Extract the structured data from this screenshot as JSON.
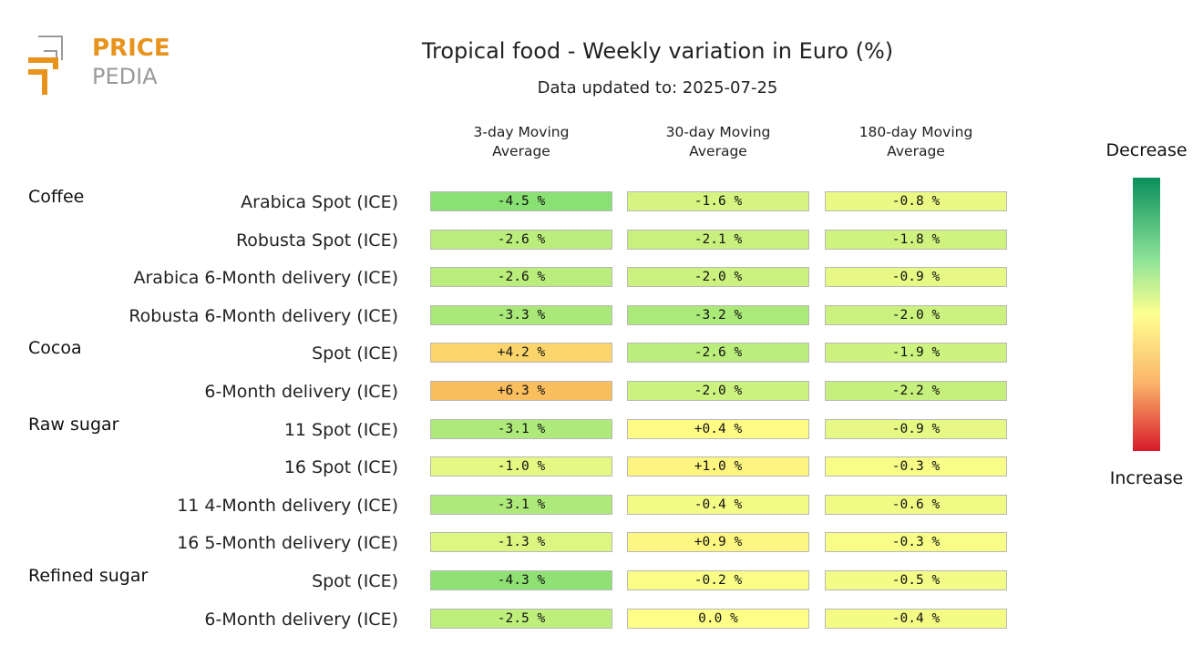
{
  "logo": {
    "line1": "PRICE",
    "line2": "PEDIA",
    "orange": "#e8931c",
    "grey": "#9a9a9a"
  },
  "title": "Tropical food - Weekly variation in Euro (%)",
  "subtitle": "Data updated to: 2025-07-25",
  "columns": [
    "3-day Moving\nAverage",
    "30-day Moving\nAverage",
    "180-day Moving\nAverage"
  ],
  "legend": {
    "top": "Decrease",
    "bottom": "Increase"
  },
  "chart_data": {
    "type": "heatmap",
    "title": "Tropical food - Weekly variation in Euro (%)",
    "subtitle": "Data updated to: 2025-07-25",
    "columns": [
      "3-day Moving Average",
      "30-day Moving Average",
      "180-day Moving Average"
    ],
    "groups": [
      {
        "name": "Coffee",
        "rows": [
          {
            "label": "Arabica Spot (ICE)",
            "values": [
              "-4.5 %",
              "-1.6 %",
              "-0.8 %"
            ]
          },
          {
            "label": "Robusta Spot (ICE)",
            "values": [
              "-2.6 %",
              "-2.1 %",
              "-1.8 %"
            ]
          },
          {
            "label": "Arabica 6-Month delivery (ICE)",
            "values": [
              "-2.6 %",
              "-2.0 %",
              "-0.9 %"
            ]
          },
          {
            "label": "Robusta 6-Month delivery (ICE)",
            "values": [
              "-3.3 %",
              "-3.2 %",
              "-2.0 %"
            ]
          }
        ]
      },
      {
        "name": "Cocoa",
        "rows": [
          {
            "label": "Spot (ICE)",
            "values": [
              "+4.2 %",
              "-2.6 %",
              "-1.9 %"
            ]
          },
          {
            "label": "6-Month delivery (ICE)",
            "values": [
              "+6.3 %",
              "-2.0 %",
              "-2.2 %"
            ]
          }
        ]
      },
      {
        "name": "Raw sugar",
        "rows": [
          {
            "label": "11 Spot (ICE)",
            "values": [
              "-3.1 %",
              "+0.4 %",
              "-0.9 %"
            ]
          },
          {
            "label": "16 Spot (ICE)",
            "values": [
              "-1.0 %",
              "+1.0 %",
              "-0.3 %"
            ]
          },
          {
            "label": "11 4-Month delivery (ICE)",
            "values": [
              "-3.1 %",
              "-0.4 %",
              "-0.6 %"
            ]
          },
          {
            "label": "16 5-Month delivery (ICE)",
            "values": [
              "-1.3 %",
              "+0.9 %",
              "-0.3 %"
            ]
          }
        ]
      },
      {
        "name": "Refined sugar",
        "rows": [
          {
            "label": "Spot (ICE)",
            "values": [
              "-4.3 %",
              "-0.2 %",
              "-0.5 %"
            ]
          },
          {
            "label": "6-Month delivery (ICE)",
            "values": [
              "-2.5 %",
              "0.0 %",
              "-0.4 %"
            ]
          }
        ]
      }
    ],
    "scale": {
      "colors": [
        "#0a8f5c",
        "#8de398",
        "#ffff90",
        "#fbb56b",
        "#d81b2a"
      ],
      "top_label": "Decrease",
      "bottom_label": "Increase"
    }
  }
}
